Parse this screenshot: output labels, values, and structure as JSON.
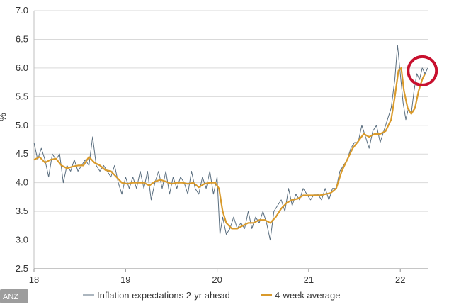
{
  "chart_data": {
    "type": "line",
    "title": "",
    "xlabel": "",
    "ylabel": "%",
    "xlim": [
      18,
      22.3
    ],
    "ylim": [
      2.5,
      7.0
    ],
    "x_ticks": [
      "18",
      "19",
      "20",
      "21",
      "22"
    ],
    "y_ticks": [
      "2.5",
      "3.0",
      "3.5",
      "4.0",
      "4.5",
      "5.0",
      "5.5",
      "6.0",
      "6.5",
      "7.0"
    ],
    "grid": "horizontal",
    "legend_position": "bottom",
    "series": [
      {
        "name": "Inflation expectations 2-yr ahead",
        "color": "#5a6e7f",
        "points": [
          [
            18.0,
            4.7
          ],
          [
            18.04,
            4.4
          ],
          [
            18.08,
            4.6
          ],
          [
            18.12,
            4.4
          ],
          [
            18.16,
            4.1
          ],
          [
            18.2,
            4.5
          ],
          [
            18.24,
            4.4
          ],
          [
            18.28,
            4.5
          ],
          [
            18.32,
            4.0
          ],
          [
            18.36,
            4.3
          ],
          [
            18.4,
            4.2
          ],
          [
            18.44,
            4.4
          ],
          [
            18.48,
            4.2
          ],
          [
            18.52,
            4.3
          ],
          [
            18.56,
            4.4
          ],
          [
            18.6,
            4.3
          ],
          [
            18.64,
            4.8
          ],
          [
            18.68,
            4.3
          ],
          [
            18.72,
            4.2
          ],
          [
            18.76,
            4.3
          ],
          [
            18.8,
            4.2
          ],
          [
            18.84,
            4.1
          ],
          [
            18.88,
            4.3
          ],
          [
            18.92,
            4.0
          ],
          [
            18.96,
            3.8
          ],
          [
            19.0,
            4.1
          ],
          [
            19.04,
            3.9
          ],
          [
            19.08,
            4.1
          ],
          [
            19.12,
            3.9
          ],
          [
            19.16,
            4.2
          ],
          [
            19.2,
            3.9
          ],
          [
            19.24,
            4.2
          ],
          [
            19.28,
            3.7
          ],
          [
            19.32,
            4.0
          ],
          [
            19.36,
            4.2
          ],
          [
            19.4,
            3.9
          ],
          [
            19.44,
            4.2
          ],
          [
            19.48,
            3.8
          ],
          [
            19.52,
            4.1
          ],
          [
            19.56,
            3.9
          ],
          [
            19.6,
            4.1
          ],
          [
            19.64,
            4.0
          ],
          [
            19.68,
            3.8
          ],
          [
            19.72,
            4.2
          ],
          [
            19.76,
            3.9
          ],
          [
            19.8,
            3.8
          ],
          [
            19.84,
            4.1
          ],
          [
            19.88,
            3.9
          ],
          [
            19.92,
            4.2
          ],
          [
            19.96,
            3.8
          ],
          [
            20.0,
            4.1
          ],
          [
            20.03,
            3.1
          ],
          [
            20.06,
            3.4
          ],
          [
            20.1,
            3.1
          ],
          [
            20.14,
            3.2
          ],
          [
            20.18,
            3.4
          ],
          [
            20.22,
            3.2
          ],
          [
            20.26,
            3.3
          ],
          [
            20.3,
            3.2
          ],
          [
            20.34,
            3.5
          ],
          [
            20.38,
            3.2
          ],
          [
            20.42,
            3.4
          ],
          [
            20.46,
            3.3
          ],
          [
            20.5,
            3.5
          ],
          [
            20.54,
            3.3
          ],
          [
            20.58,
            3.0
          ],
          [
            20.62,
            3.5
          ],
          [
            20.66,
            3.6
          ],
          [
            20.7,
            3.7
          ],
          [
            20.74,
            3.5
          ],
          [
            20.78,
            3.9
          ],
          [
            20.82,
            3.6
          ],
          [
            20.86,
            3.8
          ],
          [
            20.9,
            3.7
          ],
          [
            20.94,
            3.9
          ],
          [
            20.98,
            3.8
          ],
          [
            21.02,
            3.7
          ],
          [
            21.06,
            3.8
          ],
          [
            21.1,
            3.8
          ],
          [
            21.14,
            3.7
          ],
          [
            21.18,
            3.9
          ],
          [
            21.22,
            3.7
          ],
          [
            21.26,
            3.9
          ],
          [
            21.3,
            3.9
          ],
          [
            21.34,
            4.2
          ],
          [
            21.38,
            4.3
          ],
          [
            21.42,
            4.4
          ],
          [
            21.46,
            4.6
          ],
          [
            21.5,
            4.7
          ],
          [
            21.54,
            4.7
          ],
          [
            21.58,
            5.0
          ],
          [
            21.62,
            4.8
          ],
          [
            21.66,
            4.6
          ],
          [
            21.7,
            4.9
          ],
          [
            21.74,
            5.0
          ],
          [
            21.78,
            4.7
          ],
          [
            21.82,
            4.9
          ],
          [
            21.86,
            5.1
          ],
          [
            21.9,
            5.3
          ],
          [
            21.94,
            5.8
          ],
          [
            21.97,
            6.4
          ],
          [
            22.0,
            5.9
          ],
          [
            22.03,
            5.4
          ],
          [
            22.06,
            5.1
          ],
          [
            22.09,
            5.3
          ],
          [
            22.12,
            5.2
          ],
          [
            22.15,
            5.6
          ],
          [
            22.18,
            5.9
          ],
          [
            22.21,
            5.8
          ],
          [
            22.24,
            6.0
          ],
          [
            22.27,
            5.9
          ],
          [
            22.3,
            6.0
          ]
        ]
      },
      {
        "name": "4-week average",
        "color": "#d99a2b",
        "points": [
          [
            18.0,
            4.4
          ],
          [
            18.06,
            4.45
          ],
          [
            18.12,
            4.35
          ],
          [
            18.18,
            4.4
          ],
          [
            18.24,
            4.42
          ],
          [
            18.3,
            4.3
          ],
          [
            18.36,
            4.25
          ],
          [
            18.42,
            4.28
          ],
          [
            18.48,
            4.3
          ],
          [
            18.54,
            4.3
          ],
          [
            18.6,
            4.45
          ],
          [
            18.66,
            4.35
          ],
          [
            18.72,
            4.3
          ],
          [
            18.78,
            4.22
          ],
          [
            18.84,
            4.2
          ],
          [
            18.9,
            4.1
          ],
          [
            18.96,
            4.0
          ],
          [
            19.02,
            3.98
          ],
          [
            19.08,
            4.0
          ],
          [
            19.14,
            4.0
          ],
          [
            19.2,
            4.0
          ],
          [
            19.26,
            3.95
          ],
          [
            19.32,
            4.02
          ],
          [
            19.38,
            4.05
          ],
          [
            19.44,
            4.02
          ],
          [
            19.5,
            3.98
          ],
          [
            19.56,
            4.0
          ],
          [
            19.62,
            4.0
          ],
          [
            19.68,
            3.98
          ],
          [
            19.74,
            4.0
          ],
          [
            19.8,
            3.92
          ],
          [
            19.86,
            3.98
          ],
          [
            19.92,
            4.0
          ],
          [
            19.98,
            4.0
          ],
          [
            20.02,
            3.9
          ],
          [
            20.06,
            3.5
          ],
          [
            20.1,
            3.3
          ],
          [
            20.16,
            3.2
          ],
          [
            20.22,
            3.2
          ],
          [
            20.28,
            3.25
          ],
          [
            20.34,
            3.3
          ],
          [
            20.4,
            3.3
          ],
          [
            20.46,
            3.35
          ],
          [
            20.52,
            3.35
          ],
          [
            20.58,
            3.3
          ],
          [
            20.64,
            3.4
          ],
          [
            20.7,
            3.55
          ],
          [
            20.76,
            3.65
          ],
          [
            20.82,
            3.7
          ],
          [
            20.88,
            3.72
          ],
          [
            20.94,
            3.78
          ],
          [
            21.0,
            3.78
          ],
          [
            21.06,
            3.78
          ],
          [
            21.12,
            3.78
          ],
          [
            21.18,
            3.8
          ],
          [
            21.24,
            3.82
          ],
          [
            21.3,
            3.9
          ],
          [
            21.36,
            4.2
          ],
          [
            21.42,
            4.4
          ],
          [
            21.48,
            4.6
          ],
          [
            21.54,
            4.72
          ],
          [
            21.6,
            4.85
          ],
          [
            21.66,
            4.8
          ],
          [
            21.72,
            4.85
          ],
          [
            21.78,
            4.85
          ],
          [
            21.84,
            4.9
          ],
          [
            21.9,
            5.1
          ],
          [
            21.94,
            5.5
          ],
          [
            21.98,
            5.95
          ],
          [
            22.01,
            6.0
          ],
          [
            22.04,
            5.6
          ],
          [
            22.08,
            5.3
          ],
          [
            22.12,
            5.2
          ],
          [
            22.16,
            5.3
          ],
          [
            22.2,
            5.6
          ],
          [
            22.24,
            5.8
          ],
          [
            22.27,
            5.9
          ]
        ]
      }
    ],
    "annotation": {
      "type": "circle",
      "color": "#c8102e",
      "center": [
        22.24,
        5.95
      ]
    }
  },
  "source": "ANZ"
}
